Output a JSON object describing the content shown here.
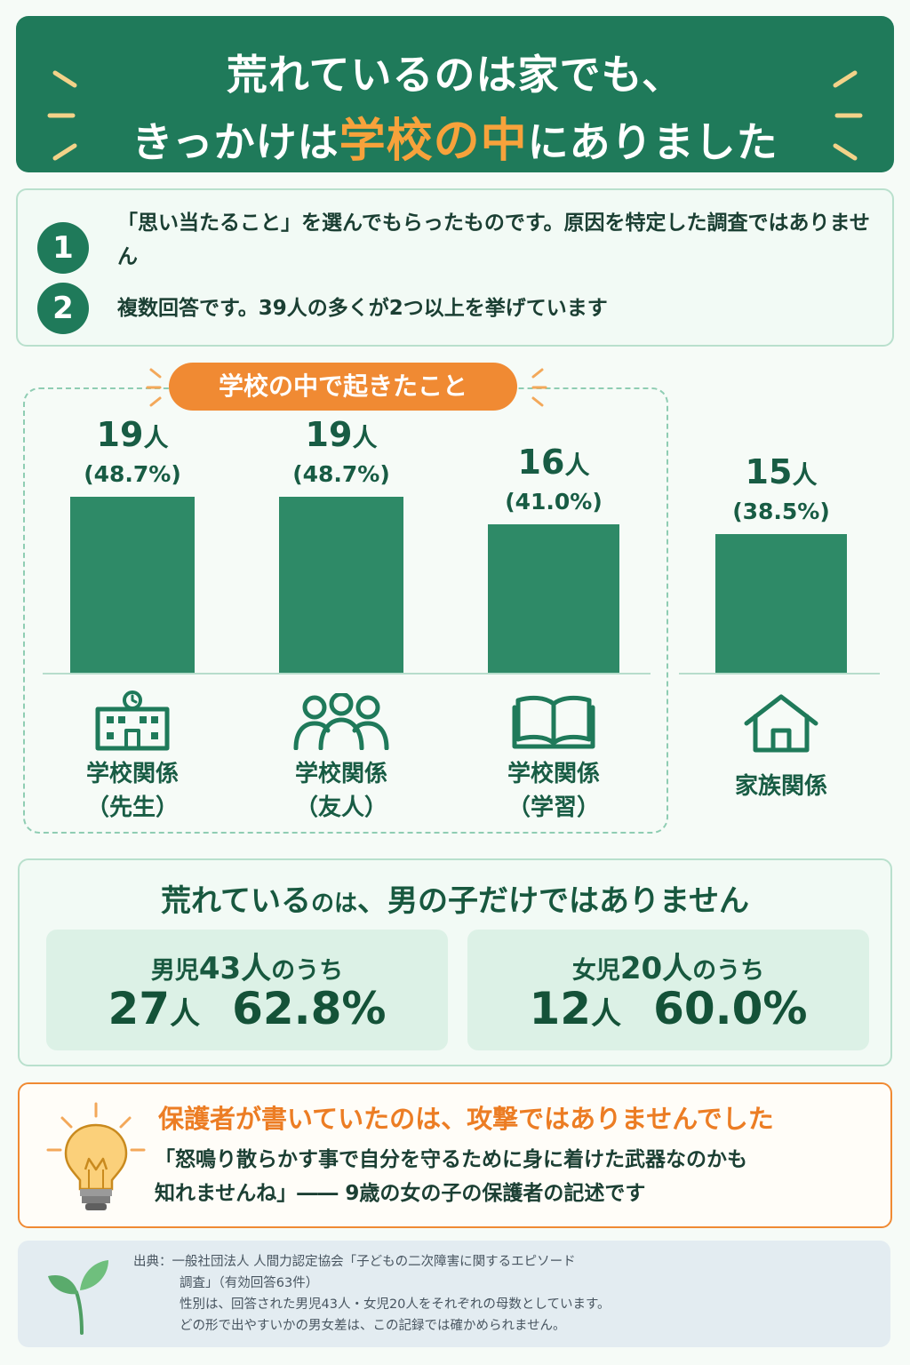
{
  "title": {
    "line1": "荒れているのは家でも、",
    "line2_pre": "きっかけは",
    "line2_accent": "学校の中",
    "line2_post": "にありました"
  },
  "notes": [
    {
      "num": "1",
      "text": "「思い当たること」を選んでもらったものです。原因を特定した調査ではありません"
    },
    {
      "num": "2",
      "text": "複数回答です。39人の多くが2つ以上を挙げています"
    }
  ],
  "chart_data": {
    "type": "bar",
    "group_label": "学校の中で起きたこと",
    "unit": "人",
    "categories": [
      "学校関係\n（先生）",
      "学校関係\n（友人）",
      "学校関係\n（学習）",
      "家族関係"
    ],
    "values": [
      19,
      19,
      16,
      15
    ],
    "percents": [
      "(48.7%)",
      "(48.7%)",
      "(41.0%)",
      "(38.5%)"
    ],
    "icons": [
      "school-building-icon",
      "people-group-icon",
      "open-book-icon",
      "house-icon"
    ],
    "bar_color": "#2e8a67"
  },
  "gender": {
    "heading_big1": "荒れている",
    "heading_small": "のは",
    "heading_big2": "、男の子だけではありません",
    "boys": {
      "label_pre": "男児",
      "label_num": "43人",
      "label_post": "のうち",
      "count": "27",
      "unit": "人",
      "percent": "62.8%"
    },
    "girls": {
      "label_pre": "女児",
      "label_num": "20人",
      "label_post": "のうち",
      "count": "12",
      "unit": "人",
      "percent": "60.0%"
    }
  },
  "quote": {
    "heading": "保護者が書いていたのは、攻撃ではありませんでした",
    "line1": "「怒鳴り散らかす事で自分を守るために身に着けた武器なのかも",
    "line2": "知れませんね」―― 9歳の女の子の保護者の記述です",
    "icon": "lightbulb-icon"
  },
  "source": {
    "line1": "出典：一般社団法人 人間力認定協会「子どもの二次障害に関するエピソード",
    "line2": "調査」（有効回答63件）",
    "line3": "性別は、回答された男児43人・女児20人をそれぞれの母数としています。",
    "line4": "どの形で出やすいかの男女差は、この記録では確かめられません。",
    "icon": "sprout-icon"
  },
  "colors": {
    "primary": "#1f7a5a",
    "accent_orange": "#f08a33",
    "title_accent": "#f7a23b"
  }
}
